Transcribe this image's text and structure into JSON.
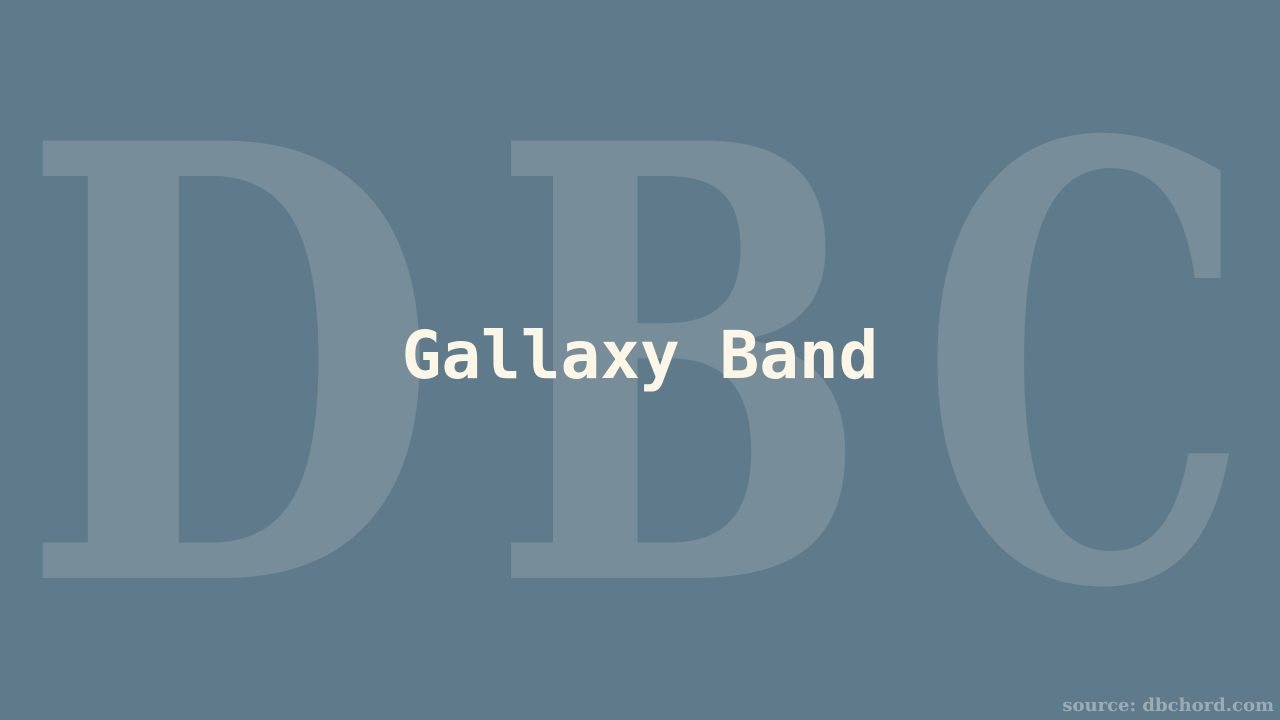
{
  "watermark": {
    "text": "DBC",
    "letters": [
      "D",
      "B",
      "C"
    ]
  },
  "title": "Gallaxy Band",
  "source": "source: dbchord.com",
  "colors": {
    "background": "#5f7b8b",
    "watermark": "#778d99",
    "title": "#fcf6e6",
    "source": "#9aacb6"
  }
}
